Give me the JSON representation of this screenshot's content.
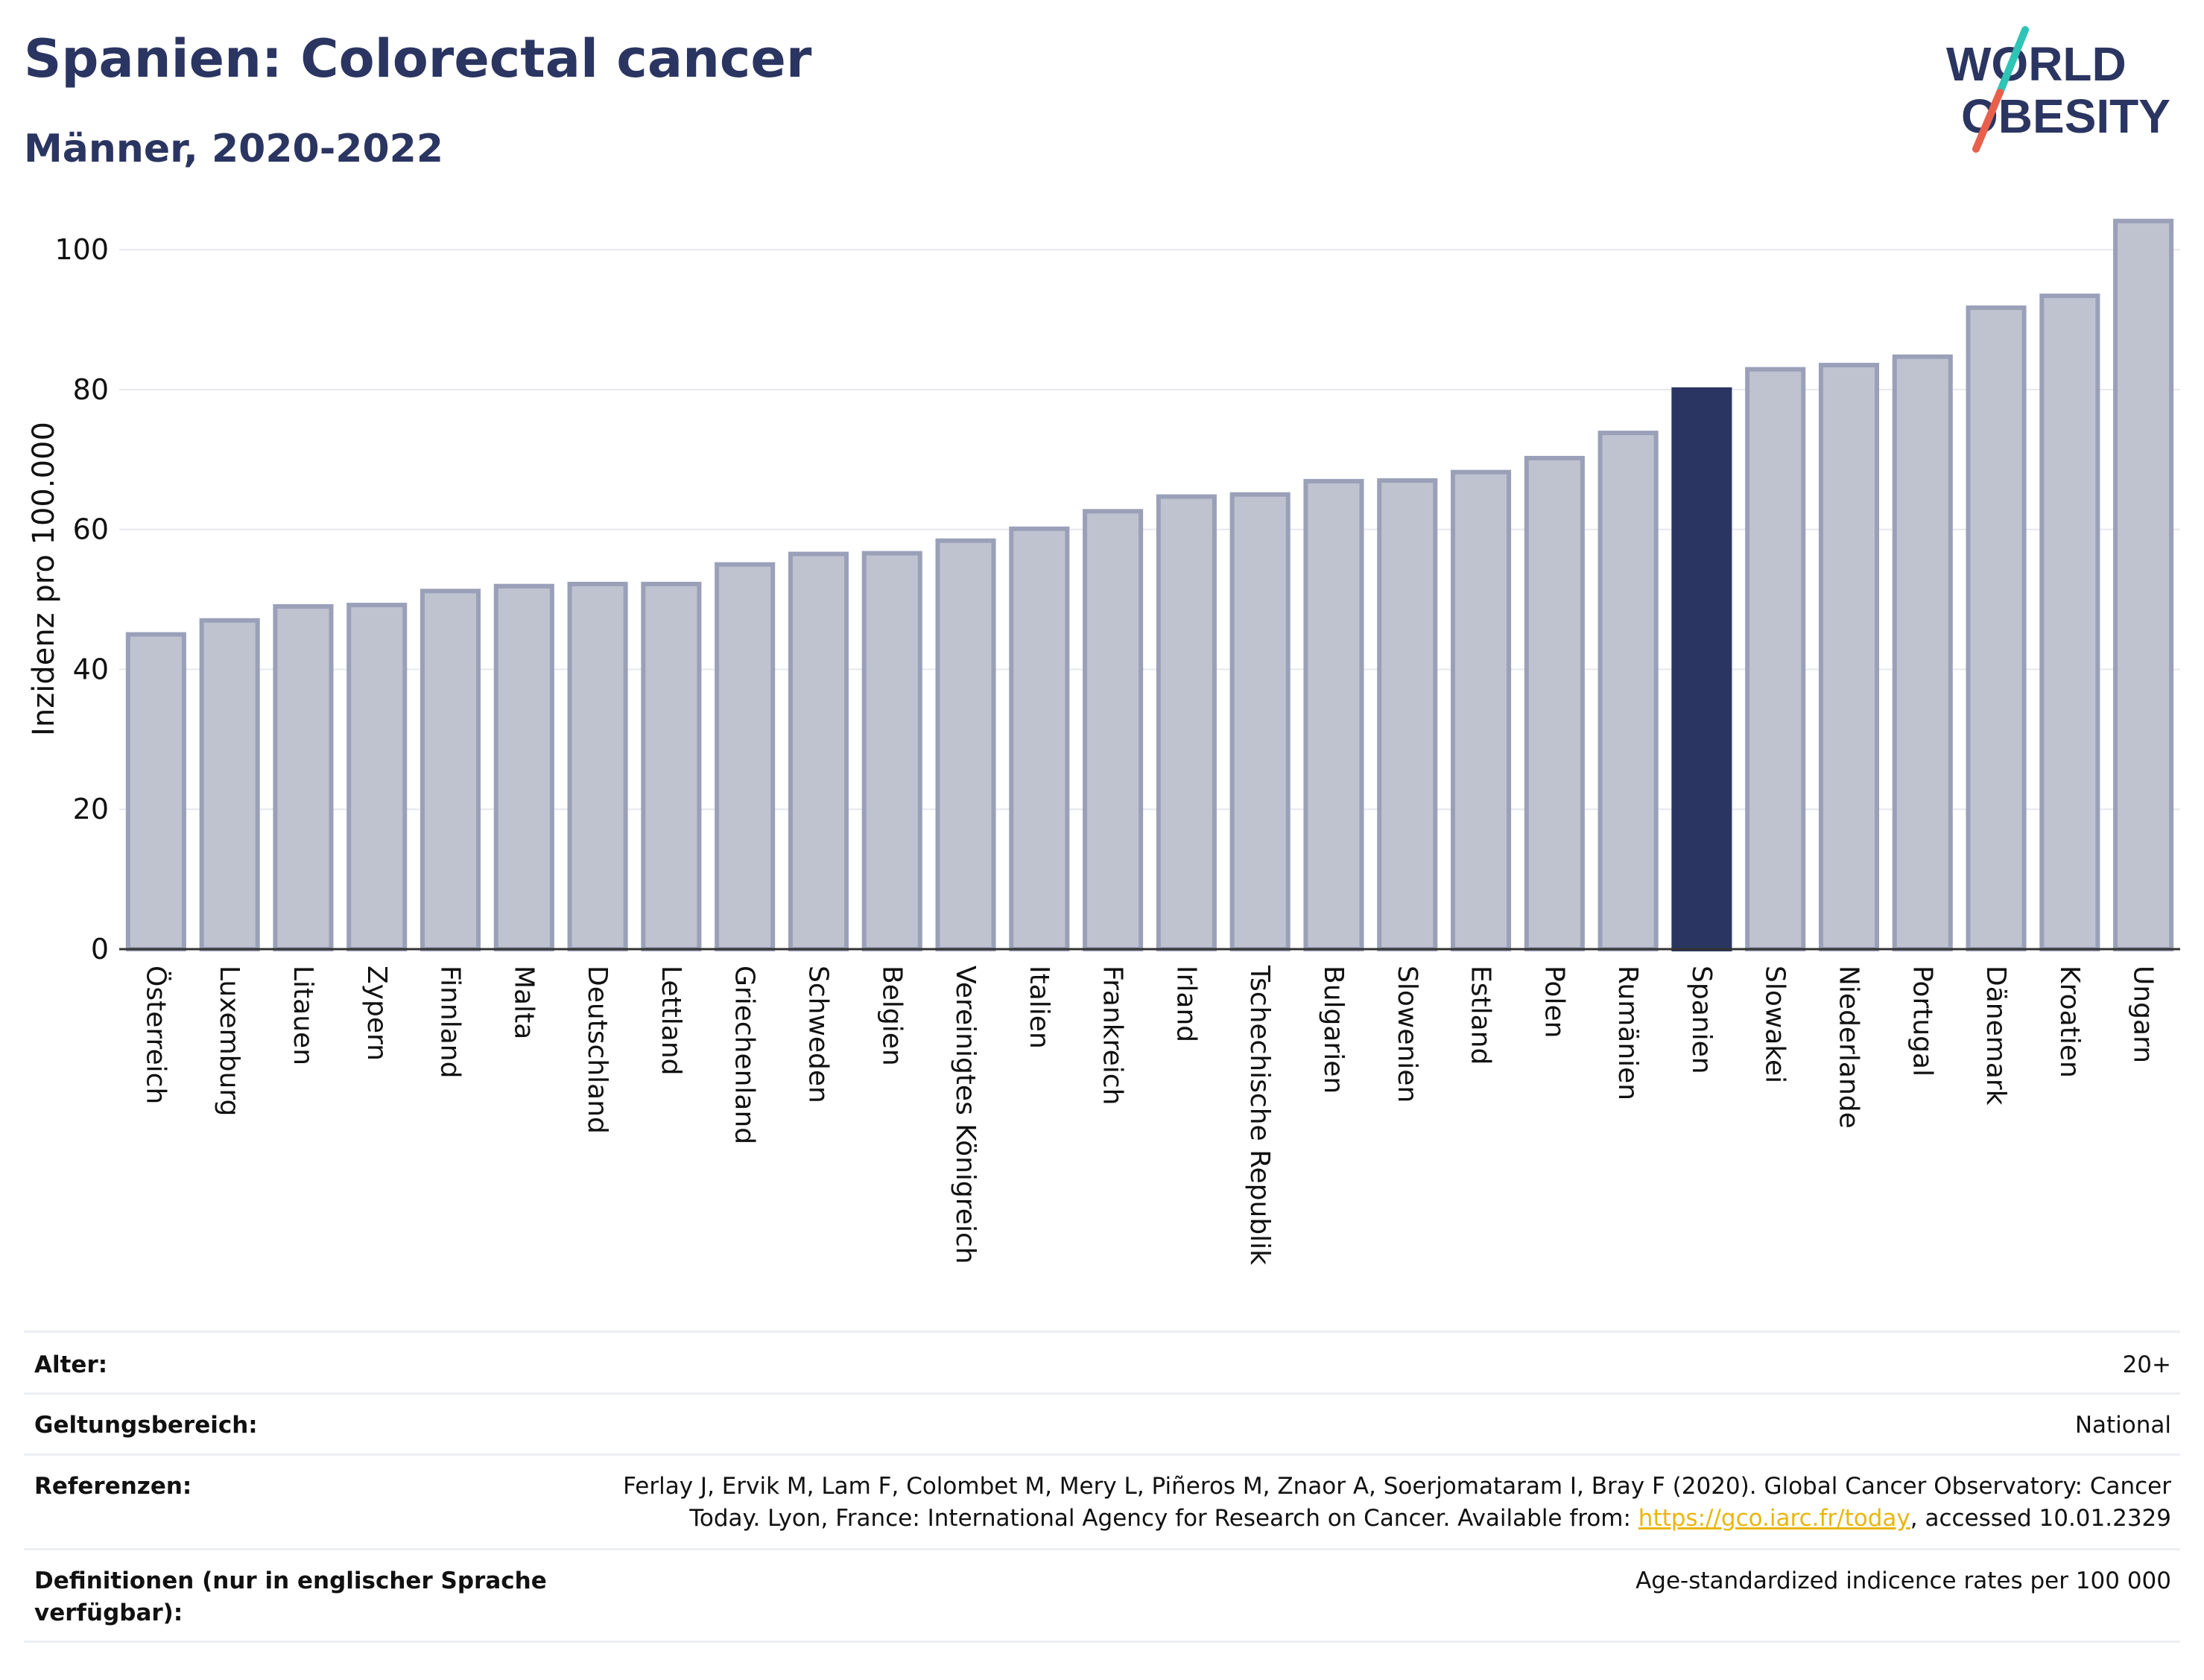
{
  "header": {
    "title": "Spanien: Colorectal cancer",
    "subtitle": "Männer, 2020-2022"
  },
  "logo": {
    "line1": "WORLD",
    "line2": "OBESITY",
    "brand_dark": "#2b3561",
    "accent_teal": "#2ec4b6",
    "accent_red": "#e8604c"
  },
  "chart_data": {
    "type": "bar",
    "ylabel": "Inzidenz pro 100.000",
    "xlabel": "",
    "ylim": [
      0,
      108
    ],
    "yticks": [
      0,
      20,
      40,
      60,
      80,
      100
    ],
    "grid": true,
    "highlight": "Spanien",
    "colors": {
      "bar": "#bfc3d0",
      "bar_edge": "#9aa0b8",
      "highlight": "#2b3561"
    },
    "categories": [
      "Österreich",
      "Luxemburg",
      "Litauen",
      "Zypern",
      "Finnland",
      "Malta",
      "Deutschland",
      "Lettland",
      "Griechenland",
      "Schweden",
      "Belgien",
      "Vereinigtes Königreich",
      "Italien",
      "Frankreich",
      "Irland",
      "Tschechische Republik",
      "Bulgarien",
      "Slowenien",
      "Estland",
      "Polen",
      "Rumänien",
      "Spanien",
      "Slowakei",
      "Niederlande",
      "Portugal",
      "Dänemark",
      "Kroatien",
      "Ungarn"
    ],
    "values": [
      45.0,
      47.0,
      49.0,
      49.2,
      51.2,
      51.9,
      52.2,
      52.2,
      55.0,
      56.5,
      56.6,
      58.4,
      60.1,
      62.6,
      64.7,
      65.0,
      66.9,
      67.0,
      68.2,
      70.2,
      73.8,
      80.0,
      82.9,
      83.5,
      84.7,
      91.7,
      93.4,
      104.1
    ]
  },
  "meta": {
    "alter_label": "Alter:",
    "alter_value": "20+",
    "scope_label": "Geltungsbereich:",
    "scope_value": "National",
    "ref_label": "Referenzen:",
    "ref_line1": "Ferlay J, Ervik M, Lam F, Colombet M, Mery L, Piñeros M, Znaor A, Soerjomataram I, Bray F (2020). Global Cancer Observatory: Cancer",
    "ref_line2_pre": "Today. Lyon, France: International Agency for Research on Cancer. Available from: ",
    "ref_link": "https://gco.iarc.fr/today",
    "ref_line2_post": ", accessed 10.01.2329",
    "def_label": "Definitionen (nur in englischer Sprache verfügbar):",
    "def_value": "Age-standardized indicence rates per 100 000"
  }
}
